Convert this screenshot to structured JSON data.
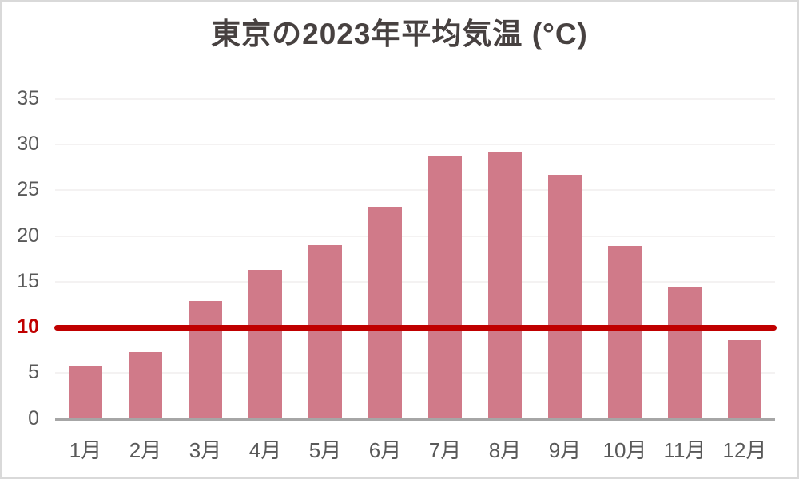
{
  "chart_data": {
    "type": "bar",
    "title": "東京の2023年平均気温 (°C)",
    "categories": [
      "1月",
      "2月",
      "3月",
      "4月",
      "5月",
      "6月",
      "7月",
      "8月",
      "9月",
      "10月",
      "11月",
      "12月"
    ],
    "values": [
      5.7,
      7.3,
      12.9,
      16.3,
      19.0,
      23.2,
      28.7,
      29.2,
      26.7,
      18.9,
      14.4,
      8.6
    ],
    "xlabel": "",
    "ylabel": "",
    "ylim": [
      0,
      35
    ],
    "yticks": [
      0,
      5,
      10,
      15,
      20,
      25,
      30,
      35
    ],
    "grid": true,
    "legend": false,
    "reference_line": {
      "value": 10,
      "tick_label": "10"
    },
    "colors": {
      "bar": "#d07a89",
      "reference_line": "#c00000",
      "highlighted_tick": "#c00000",
      "title": "#474140",
      "axis_labels": "#595959",
      "gridline": "#f4f2f2",
      "axis_line": "#a6a6a6",
      "frame_border": "#d9d9d9",
      "background": "#ffffff"
    }
  }
}
